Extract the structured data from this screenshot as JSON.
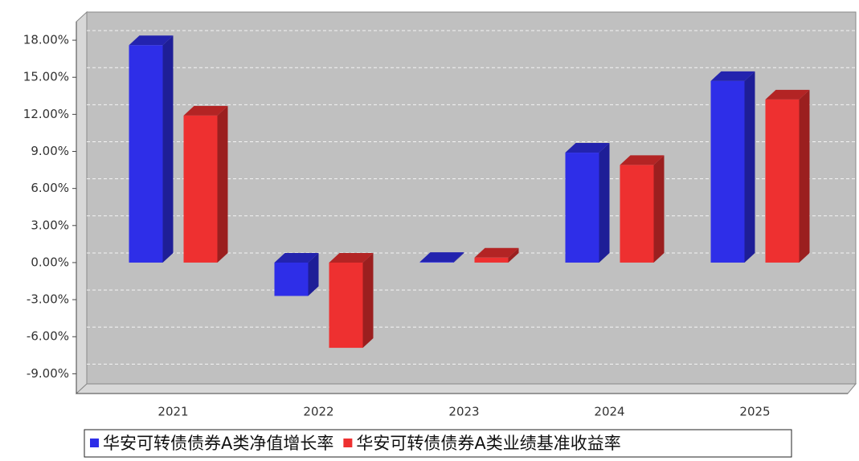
{
  "chart_data": {
    "type": "bar3d",
    "categories": [
      "2021",
      "2022",
      "2023",
      "2024",
      "2025"
    ],
    "series": [
      {
        "name": "华安可转债债券A类净值增长率",
        "color": "#2e2ee8",
        "values": [
          17.6,
          -2.7,
          0.05,
          8.9,
          14.7
        ]
      },
      {
        "name": "华安可转债债券A类业绩基准收益率",
        "color": "#ee3030",
        "values": [
          11.9,
          -6.9,
          0.4,
          7.9,
          13.2
        ]
      }
    ],
    "ylim": [
      -10.6,
      19.5
    ],
    "yticks": [
      {
        "value": -9,
        "label": "-9.00%"
      },
      {
        "value": -6,
        "label": "-6.00%"
      },
      {
        "value": -3,
        "label": "-3.00%"
      },
      {
        "value": 0,
        "label": "0.00%"
      },
      {
        "value": 3,
        "label": "3.00%"
      },
      {
        "value": 6,
        "label": "6.00%"
      },
      {
        "value": 9,
        "label": "9.00%"
      },
      {
        "value": 12,
        "label": "12.00%"
      },
      {
        "value": 15,
        "label": "15.00%"
      },
      {
        "value": 18,
        "label": "18.00%"
      }
    ],
    "grid": true
  }
}
